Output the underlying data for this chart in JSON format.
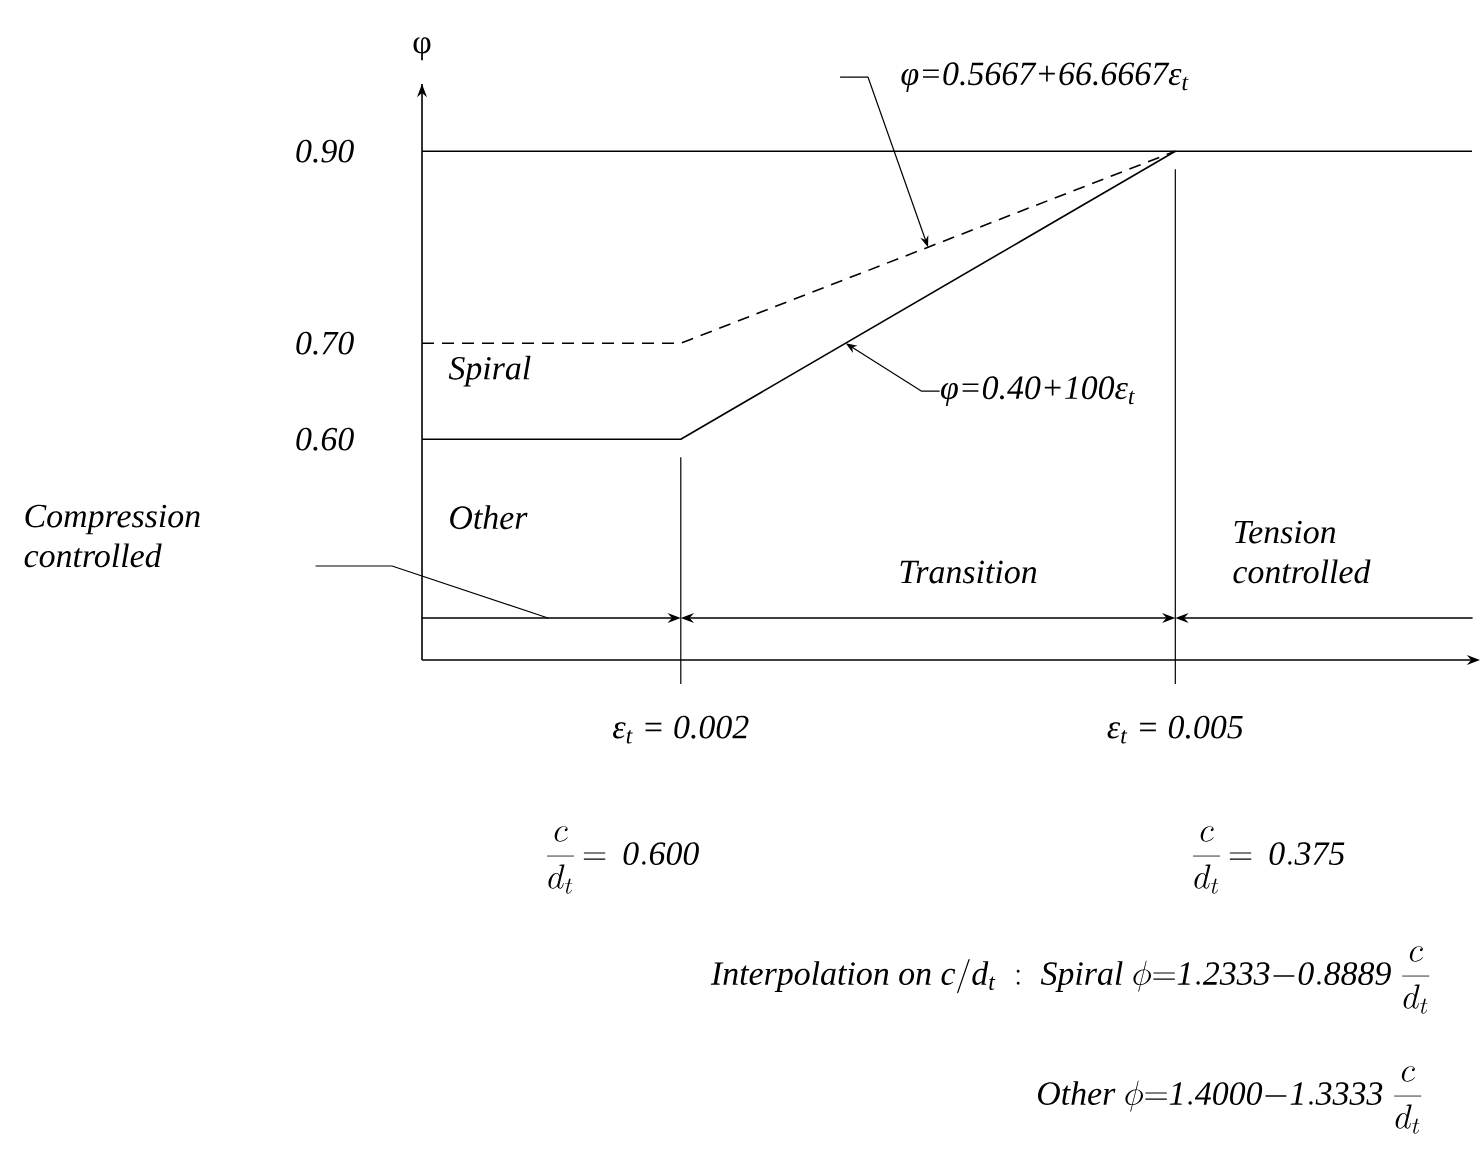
{
  "chart_data": {
    "type": "line",
    "ylabel": "φ",
    "xlim": [
      0.00043,
      0.0068
    ],
    "ylim": [
      0.37,
      0.97
    ],
    "xticks": [
      {
        "value": 0.002,
        "label": "ε$_{t}$ = 0.002"
      },
      {
        "value": 0.005,
        "label": "ε$_{t}$ = 0.005"
      }
    ],
    "yticks": [
      {
        "value": 0.6,
        "label": "0.60"
      },
      {
        "value": 0.7,
        "label": "0.70"
      },
      {
        "value": 0.9,
        "label": "0.90"
      }
    ],
    "series": [
      {
        "name": "Spiral",
        "color": "#000000",
        "line_style": "dashed",
        "x": [
          0.00043,
          0.002,
          0.005
        ],
        "values": [
          0.7,
          0.7,
          0.9
        ]
      },
      {
        "name": "Other",
        "color": "#000000",
        "line_style": "solid",
        "x": [
          0.00043,
          0.002,
          0.005
        ],
        "values": [
          0.6,
          0.6,
          0.9
        ]
      }
    ],
    "ref_lines": [
      {
        "axis": "y",
        "value": 0.9,
        "color": "#000000"
      },
      {
        "axis": "x",
        "value": 0.002,
        "color": "#000000"
      },
      {
        "axis": "x",
        "value": 0.005,
        "color": "#000000"
      }
    ],
    "annotations": [
      "Compression controlled",
      "Transition",
      "Tension controlled",
      {
        "text": "φ=0.5667+66.6667ε$_{t}$",
        "x": 0.0035,
        "y": 0.8
      },
      {
        "text": "φ=0.40+100ε$_{t}$",
        "x": 0.003,
        "y": 0.7
      },
      "\\frac{c}{d_t}\\mathit{\\,=\\,0.600}",
      "\\frac{c}{d_t}\\mathit{\\,=\\,0.375}",
      "\\mathit{Interpolation\\ on\\ c/d_t\\ :\\ Spiral\\ \\phi{=}1.2333{-}0.8889}\\ \\frac{c}{d_t}",
      "\\mathit{Other\\ \\phi{=}1.4000{-}1.3333}\\ \\frac{c}{d_t}"
    ],
    "grid": false,
    "marker": "none"
  }
}
